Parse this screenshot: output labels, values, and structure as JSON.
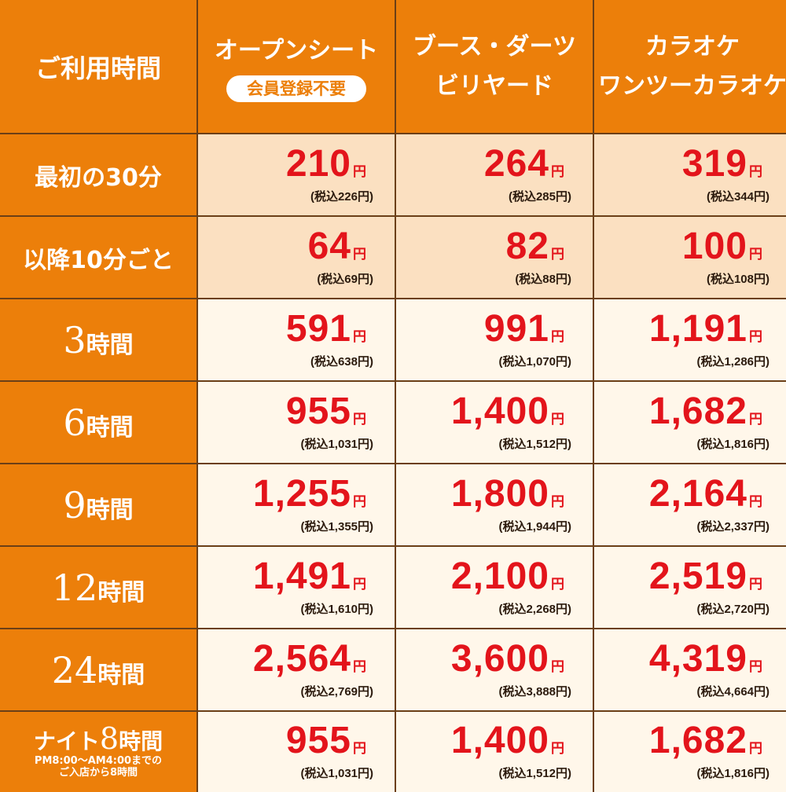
{
  "header": {
    "corner_label": "ご利用時間",
    "columns": [
      {
        "line1": "オープンシート",
        "line2": "",
        "badge": "会員登録不要"
      },
      {
        "line1": "ブース・ダーツ",
        "line2": "ビリヤード",
        "badge": ""
      },
      {
        "line1": "カラオケ",
        "line2": "ワンツーカラオケ",
        "badge": ""
      }
    ]
  },
  "rows": [
    {
      "label": "最初の30分",
      "prices": [
        {
          "main": "210",
          "yen": "円",
          "tax": "(税込226円)"
        },
        {
          "main": "264",
          "yen": "円",
          "tax": "(税込285円)"
        },
        {
          "main": "319",
          "yen": "円",
          "tax": "(税込344円)"
        }
      ]
    },
    {
      "label": "以降10分ごと",
      "prices": [
        {
          "main": "64",
          "yen": "円",
          "tax": "(税込69円)"
        },
        {
          "main": "82",
          "yen": "円",
          "tax": "(税込88円)"
        },
        {
          "main": "100",
          "yen": "円",
          "tax": "(税込108円)"
        }
      ]
    },
    {
      "num": "3",
      "unit": "時間",
      "prices": [
        {
          "main": "591",
          "yen": "円",
          "tax": "(税込638円)"
        },
        {
          "main": "991",
          "yen": "円",
          "tax": "(税込1,070円)"
        },
        {
          "main": "1,191",
          "yen": "円",
          "tax": "(税込1,286円)"
        }
      ]
    },
    {
      "num": "6",
      "unit": "時間",
      "prices": [
        {
          "main": "955",
          "yen": "円",
          "tax": "(税込1,031円)"
        },
        {
          "main": "1,400",
          "yen": "円",
          "tax": "(税込1,512円)"
        },
        {
          "main": "1,682",
          "yen": "円",
          "tax": "(税込1,816円)"
        }
      ]
    },
    {
      "num": "9",
      "unit": "時間",
      "prices": [
        {
          "main": "1,255",
          "yen": "円",
          "tax": "(税込1,355円)"
        },
        {
          "main": "1,800",
          "yen": "円",
          "tax": "(税込1,944円)"
        },
        {
          "main": "2,164",
          "yen": "円",
          "tax": "(税込2,337円)"
        }
      ]
    },
    {
      "num": "12",
      "unit": "時間",
      "prices": [
        {
          "main": "1,491",
          "yen": "円",
          "tax": "(税込1,610円)"
        },
        {
          "main": "2,100",
          "yen": "円",
          "tax": "(税込2,268円)"
        },
        {
          "main": "2,519",
          "yen": "円",
          "tax": "(税込2,720円)"
        }
      ]
    },
    {
      "num": "24",
      "unit": "時間",
      "prices": [
        {
          "main": "2,564",
          "yen": "円",
          "tax": "(税込2,769円)"
        },
        {
          "main": "3,600",
          "yen": "円",
          "tax": "(税込3,888円)"
        },
        {
          "main": "4,319",
          "yen": "円",
          "tax": "(税込4,664円)"
        }
      ]
    },
    {
      "pre": "ナイト",
      "num": "8",
      "unit": "時間",
      "sub1": "PM8:00～AM4:00までの",
      "sub2": "ご入店から8時間",
      "prices": [
        {
          "main": "955",
          "yen": "円",
          "tax": "(税込1,031円)"
        },
        {
          "main": "1,400",
          "yen": "円",
          "tax": "(税込1,512円)"
        },
        {
          "main": "1,682",
          "yen": "円",
          "tax": "(税込1,816円)"
        }
      ]
    }
  ],
  "colors": {
    "header_orange": "#ec7f0a",
    "price_red": "#e3141b",
    "border_brown": "#6b3f17",
    "light_row": "#fbe0c1",
    "pale_row": "#fff7ea"
  }
}
